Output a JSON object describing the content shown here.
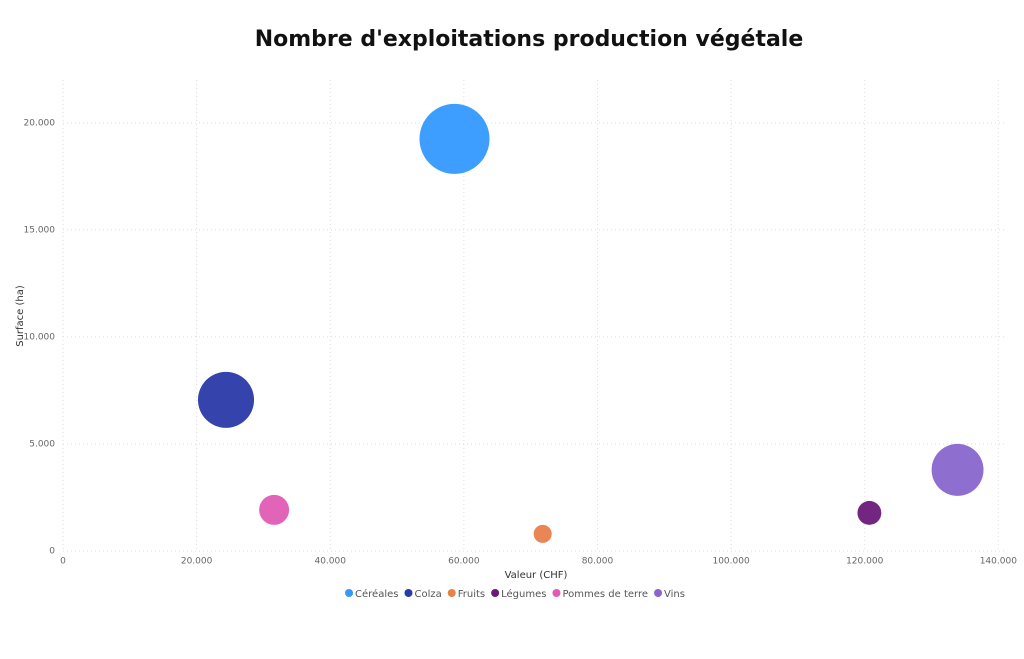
{
  "chart_data": {
    "type": "bubble",
    "title": "Nombre d'exploitations production végétale",
    "x_label": "Valeur (CHF)",
    "y_label": "Surface (ha)",
    "xlim": [
      0,
      141000
    ],
    "ylim": [
      0,
      22000
    ],
    "xticks": [
      0,
      {
        "value": 20000,
        "label": "20.000"
      },
      {
        "value": 40000,
        "label": "40.000"
      },
      {
        "value": 60000,
        "label": "60.000"
      },
      {
        "value": 80000,
        "label": "80.000"
      },
      {
        "value": 100000,
        "label": "100.000"
      },
      {
        "value": 120000,
        "label": "120.000"
      },
      {
        "value": 140000,
        "label": "140.000"
      }
    ],
    "yticks": [
      0,
      {
        "value": 5000,
        "label": "5.000"
      },
      {
        "value": 10000,
        "label": "10.000"
      },
      {
        "value": 15000,
        "label": "15.000"
      },
      {
        "value": 20000,
        "label": "20.000"
      }
    ],
    "grid": true,
    "legend": "bottom",
    "series": [
      {
        "name": "Céréales",
        "color": "#3399ff",
        "x": [
          58600
        ],
        "values": [
          19250
        ],
        "sizes": [
          12000
        ]
      },
      {
        "name": "Colza",
        "color": "#2a3aa8",
        "x": [
          24400
        ],
        "values": [
          7060
        ],
        "sizes": [
          7700
        ]
      },
      {
        "name": "Fruits",
        "color": "#e8804a",
        "x": [
          71800
        ],
        "values": [
          800
        ],
        "sizes": [
          800
        ]
      },
      {
        "name": "Légumes",
        "color": "#6b1a7a",
        "x": [
          120700
        ],
        "values": [
          1780
        ],
        "sizes": [
          1400
        ]
      },
      {
        "name": "Pommes de terre",
        "color": "#e05cb5",
        "x": [
          31600
        ],
        "values": [
          1920
        ],
        "sizes": [
          2200
        ]
      },
      {
        "name": "Vins",
        "color": "#8866cc",
        "x": [
          133900
        ],
        "values": [
          3790
        ],
        "sizes": [
          6600
        ]
      }
    ]
  }
}
